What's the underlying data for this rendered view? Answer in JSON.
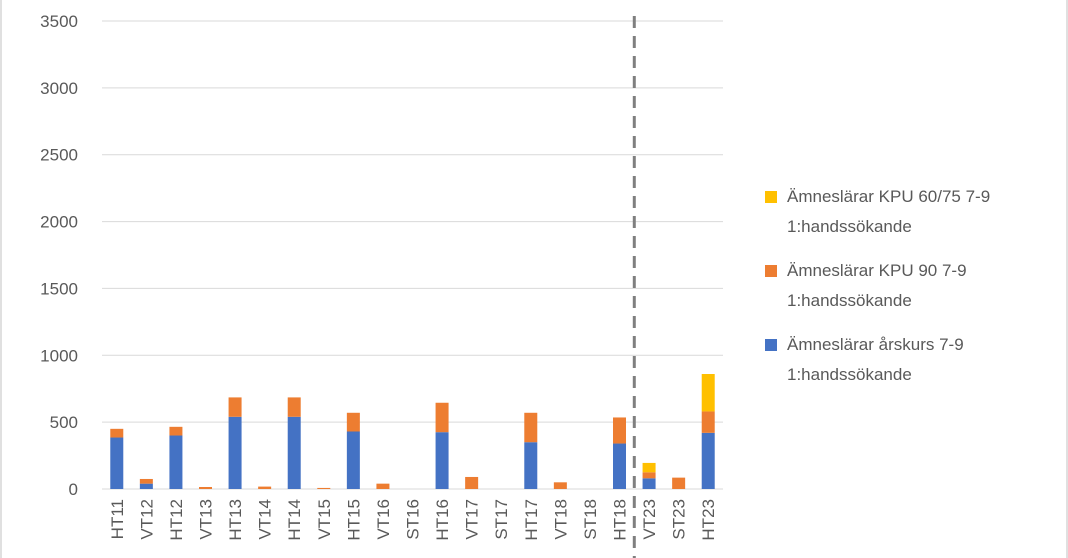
{
  "chart_data": {
    "type": "bar",
    "stacked": true,
    "categories": [
      "HT11",
      "VT12",
      "HT12",
      "VT13",
      "HT13",
      "VT14",
      "HT14",
      "VT15",
      "HT15",
      "VT16",
      "ST16",
      "HT16",
      "VT17",
      "ST17",
      "HT17",
      "VT18",
      "ST18",
      "HT18",
      "VT23",
      "ST23",
      "HT23"
    ],
    "series": [
      {
        "name": "Ämneslärar årskurs 7-9 1:handssökande",
        "color": "#4472c4",
        "values": [
          385,
          40,
          400,
          0,
          540,
          0,
          540,
          0,
          430,
          0,
          0,
          425,
          0,
          0,
          350,
          0,
          0,
          340,
          80,
          0,
          420
        ]
      },
      {
        "name": "Ämneslärar KPU 90 7-9 1:handssökande",
        "color": "#ed7d31",
        "values": [
          65,
          35,
          65,
          15,
          145,
          18,
          145,
          8,
          140,
          40,
          0,
          220,
          90,
          0,
          220,
          50,
          0,
          195,
          45,
          85,
          160
        ]
      },
      {
        "name": "Ämneslärar KPU 60/75 7-9 1:handssökande",
        "color": "#ffc000",
        "values": [
          0,
          0,
          0,
          0,
          0,
          0,
          0,
          0,
          0,
          0,
          0,
          0,
          0,
          0,
          0,
          0,
          0,
          0,
          70,
          0,
          280
        ]
      }
    ],
    "ylim": [
      0,
      3500
    ],
    "yticks": [
      0,
      500,
      1000,
      1500,
      2000,
      2500,
      3000,
      3500
    ],
    "grid": true,
    "divider_after_category": "HT18",
    "legend_position": "right"
  },
  "legend": {
    "items": [
      {
        "line1": "Ämneslärar KPU 60/75 7-9",
        "line2": "1:handssökande",
        "color": "#ffc000"
      },
      {
        "line1": "Ämneslärar KPU 90 7-9",
        "line2": "1:handssökande",
        "color": "#ed7d31"
      },
      {
        "line1": "Ämneslärar årskurs 7-9",
        "line2": "1:handssökande",
        "color": "#4472c4"
      }
    ]
  }
}
